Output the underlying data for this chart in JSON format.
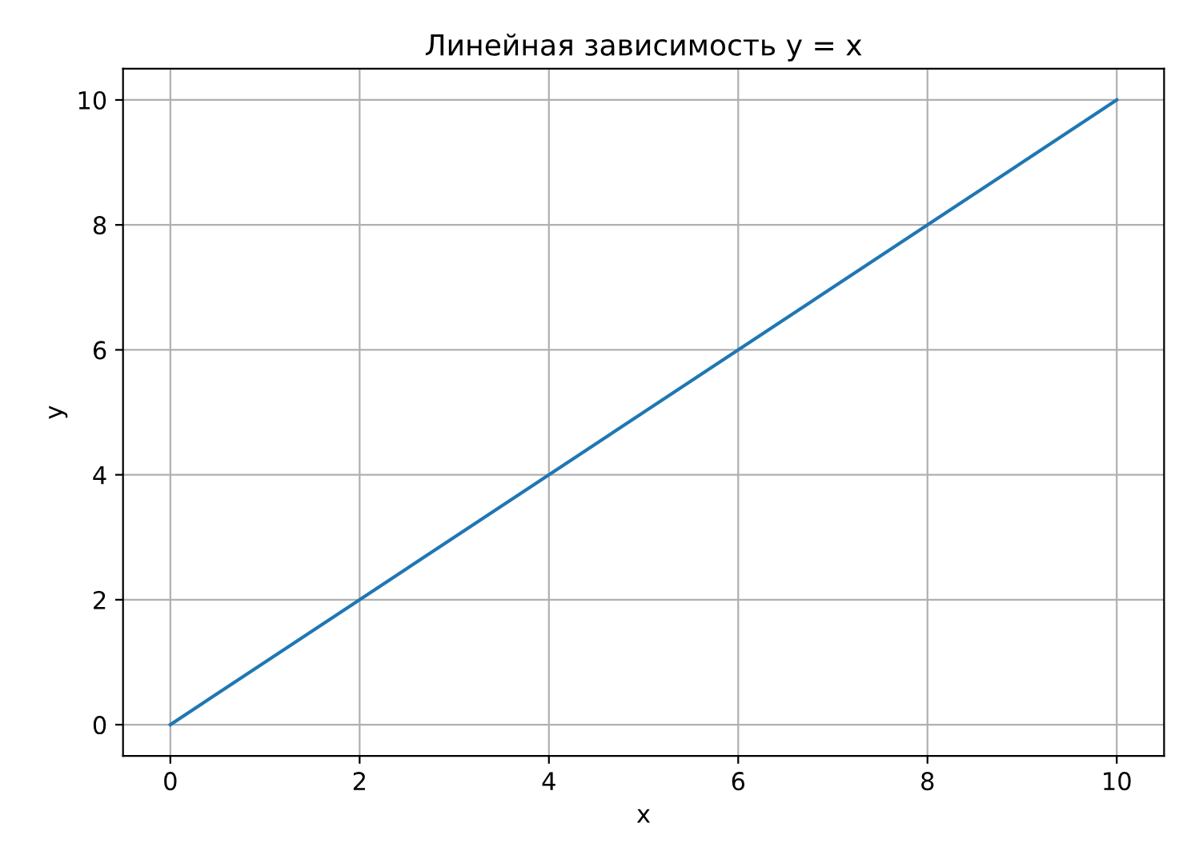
{
  "chart_data": {
    "type": "line",
    "title": "Линейная зависимость y = x",
    "xlabel": "x",
    "ylabel": "y",
    "x": [
      0,
      10
    ],
    "series": [
      {
        "color": "#1f77b4",
        "values": [
          0,
          10
        ]
      }
    ],
    "xlim": [
      -0.5,
      10.5
    ],
    "ylim": [
      -0.5,
      10.5
    ],
    "xticks": [
      0,
      2,
      4,
      6,
      8,
      10
    ],
    "yticks": [
      0,
      2,
      4,
      6,
      8,
      10
    ],
    "grid": true
  }
}
